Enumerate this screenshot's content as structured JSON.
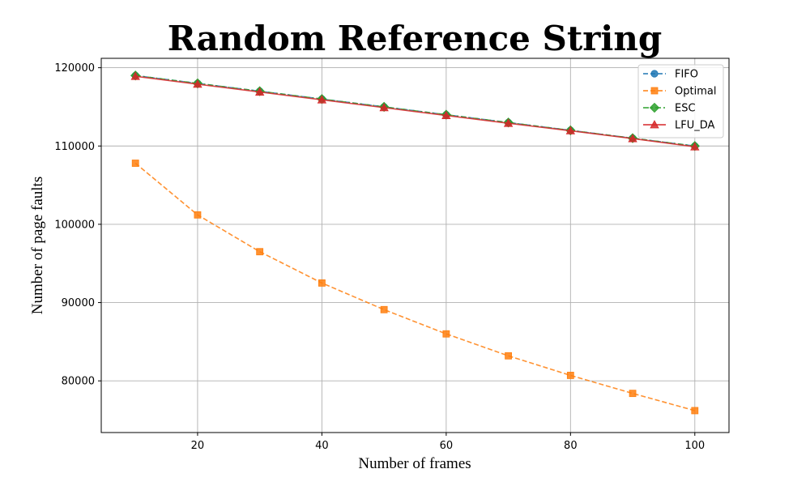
{
  "chart_data": {
    "type": "line",
    "title": "Random Reference String",
    "xlabel": "Number of frames",
    "ylabel": "Number of page faults",
    "x": [
      10,
      20,
      30,
      40,
      50,
      60,
      70,
      80,
      90,
      100
    ],
    "xlim": [
      4.5,
      105.5
    ],
    "ylim": [
      73400,
      121200
    ],
    "xticks": [
      20,
      40,
      60,
      80,
      100
    ],
    "yticks": [
      80000,
      90000,
      100000,
      110000,
      120000
    ],
    "grid": true,
    "legend_position": "top-right",
    "series": [
      {
        "name": "FIFO",
        "color": "#1f77b4",
        "marker": "circle",
        "linestyle": "dashed",
        "values": [
          119000,
          118000,
          117000,
          116000,
          115000,
          114000,
          113000,
          112000,
          111000,
          110000
        ]
      },
      {
        "name": "Optimal",
        "color": "#ff7f0e",
        "marker": "square",
        "linestyle": "dashed",
        "values": [
          107800,
          101200,
          96500,
          92500,
          89100,
          86000,
          83200,
          80700,
          78400,
          76200
        ]
      },
      {
        "name": "ESC",
        "color": "#2ca02c",
        "marker": "diamond",
        "linestyle": "dashdot",
        "values": [
          119000,
          118000,
          117000,
          116000,
          115000,
          114000,
          113000,
          112000,
          111000,
          110000
        ]
      },
      {
        "name": "LFU_DA",
        "color": "#d62728",
        "marker": "triangle",
        "linestyle": "solid",
        "values": [
          118900,
          117900,
          116900,
          115900,
          114900,
          113900,
          112900,
          111950,
          110950,
          109900
        ]
      }
    ]
  }
}
